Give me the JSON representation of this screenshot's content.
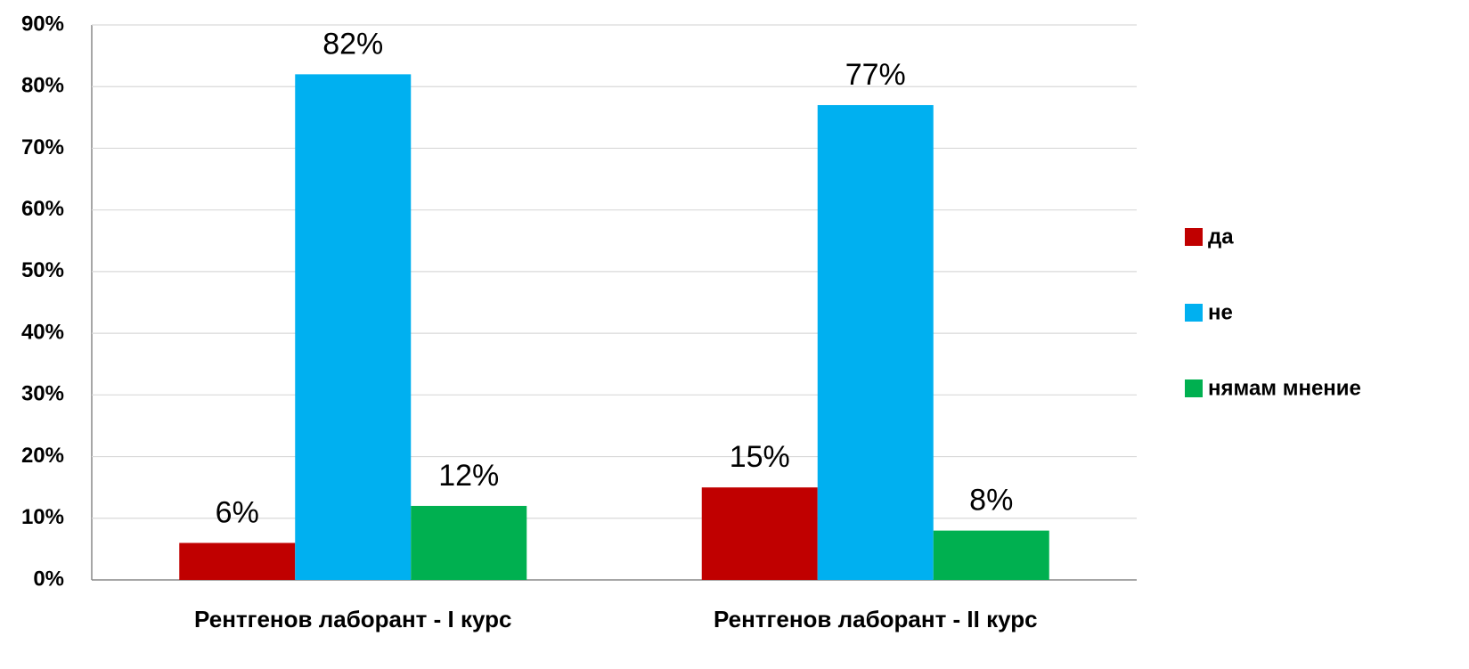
{
  "chart_data": {
    "type": "bar",
    "categories": [
      "Рентгенов лаборант - I курс",
      "Рентгенов лаборант - II курс"
    ],
    "series": [
      {
        "name": "да",
        "color": "#c00000",
        "values": [
          6,
          15
        ],
        "value_labels": [
          "6%",
          "15%"
        ]
      },
      {
        "name": "не",
        "color": "#00b0f0",
        "values": [
          82,
          77
        ],
        "value_labels": [
          "82%",
          "77%"
        ]
      },
      {
        "name": "нямам мнение",
        "color": "#00b050",
        "values": [
          12,
          8
        ],
        "value_labels": [
          "12%",
          "8%"
        ]
      }
    ],
    "ylim": [
      0,
      90
    ],
    "yticks": [
      {
        "value": 0,
        "label": "0%"
      },
      {
        "value": 10,
        "label": "10%"
      },
      {
        "value": 20,
        "label": "20%"
      },
      {
        "value": 30,
        "label": "30%"
      },
      {
        "value": 40,
        "label": "40%"
      },
      {
        "value": 50,
        "label": "50%"
      },
      {
        "value": 60,
        "label": "60%"
      },
      {
        "value": 70,
        "label": "70%"
      },
      {
        "value": 80,
        "label": "80%"
      },
      {
        "value": 90,
        "label": "90%"
      }
    ],
    "grid": true,
    "legend": "right"
  }
}
